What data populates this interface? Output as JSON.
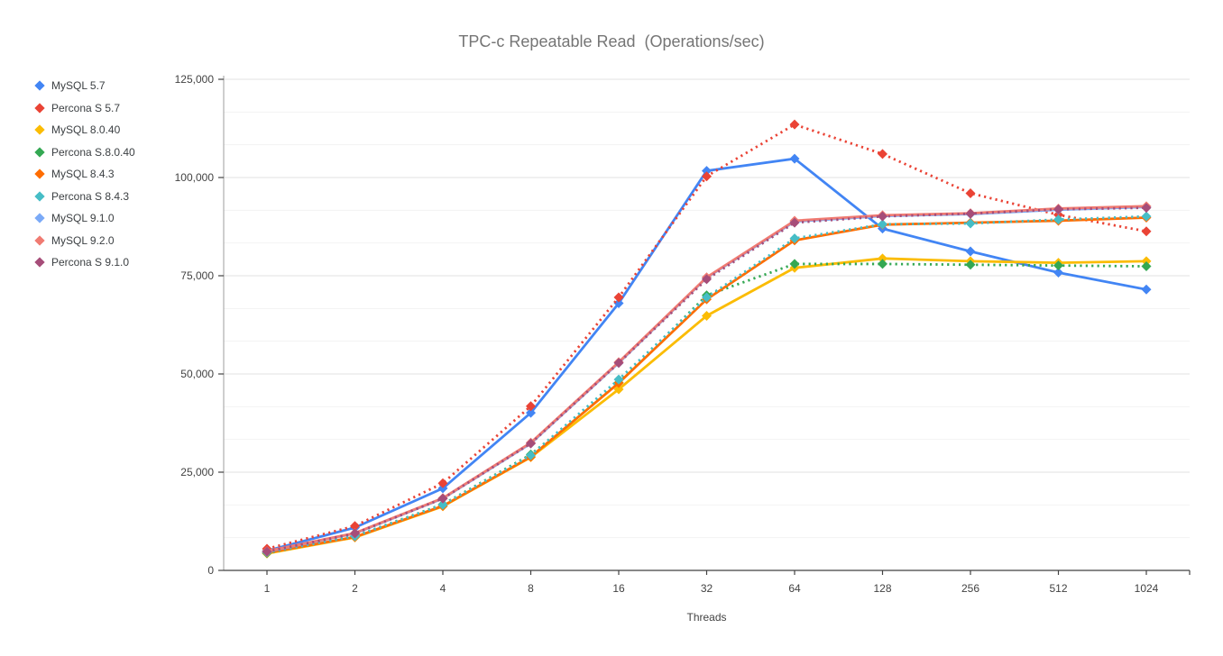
{
  "chart_data": {
    "type": "line",
    "title": "TPC-c Repeatable Read  (Operations/sec)",
    "xlabel": "Threads",
    "ylabel": "",
    "x_categories": [
      "1",
      "2",
      "4",
      "8",
      "16",
      "32",
      "64",
      "128",
      "256",
      "512",
      "1024"
    ],
    "y_tick_labels": [
      "0",
      "25,000",
      "50,000",
      "75,000",
      "100,000",
      "125,000"
    ],
    "ylim": [
      0,
      125000
    ],
    "grid": "major and minor horizontal gridlines, minor every 8333",
    "legend_position": "left",
    "series": [
      {
        "name": "MySQL 5.7",
        "color": "#4285F4",
        "style": "solid",
        "values": [
          5000,
          10900,
          20900,
          40100,
          68000,
          101700,
          104800,
          87000,
          81200,
          75800,
          71500
        ]
      },
      {
        "name": "Percona S 5.7",
        "color": "#EA4335",
        "style": "dotted",
        "values": [
          5500,
          11300,
          22200,
          41800,
          69500,
          100300,
          113500,
          106000,
          96000,
          90500,
          86300
        ]
      },
      {
        "name": "MySQL 8.0.40",
        "color": "#FBBC04",
        "style": "solid",
        "values": [
          4300,
          8400,
          16300,
          28800,
          46100,
          64800,
          77000,
          79400,
          78700,
          78300,
          78700
        ]
      },
      {
        "name": "Percona S.8.0.40",
        "color": "#34A853",
        "style": "dotted",
        "values": [
          4400,
          8700,
          16800,
          29500,
          47800,
          70000,
          78000,
          78000,
          77800,
          77600,
          77400
        ]
      },
      {
        "name": "MySQL 8.4.3",
        "color": "#FF6D01",
        "style": "solid",
        "values": [
          4500,
          8500,
          16400,
          28900,
          47700,
          69000,
          84000,
          88000,
          88500,
          89000,
          89800
        ]
      },
      {
        "name": "Percona S 8.4.3",
        "color": "#46BDC6",
        "style": "dotted",
        "values": [
          4600,
          8700,
          16700,
          29300,
          48600,
          69500,
          84500,
          88100,
          88300,
          89300,
          90100
        ]
      },
      {
        "name": "MySQL 9.1.0",
        "color": "#7BAAF7",
        "style": "solid",
        "values": [
          4800,
          9400,
          18300,
          32300,
          52800,
          74500,
          88800,
          90200,
          90700,
          91800,
          92500
        ]
      },
      {
        "name": "MySQL 9.2.0",
        "color": "#F07B72",
        "style": "solid",
        "values": [
          4900,
          9500,
          18400,
          32500,
          53000,
          74600,
          89000,
          90400,
          90900,
          92100,
          92700
        ]
      },
      {
        "name": "Percona S 9.1.0",
        "color": "#A64D79",
        "style": "dotted",
        "values": [
          4800,
          9400,
          18300,
          32300,
          52800,
          74100,
          88500,
          90100,
          90800,
          91900,
          92300
        ]
      }
    ]
  }
}
